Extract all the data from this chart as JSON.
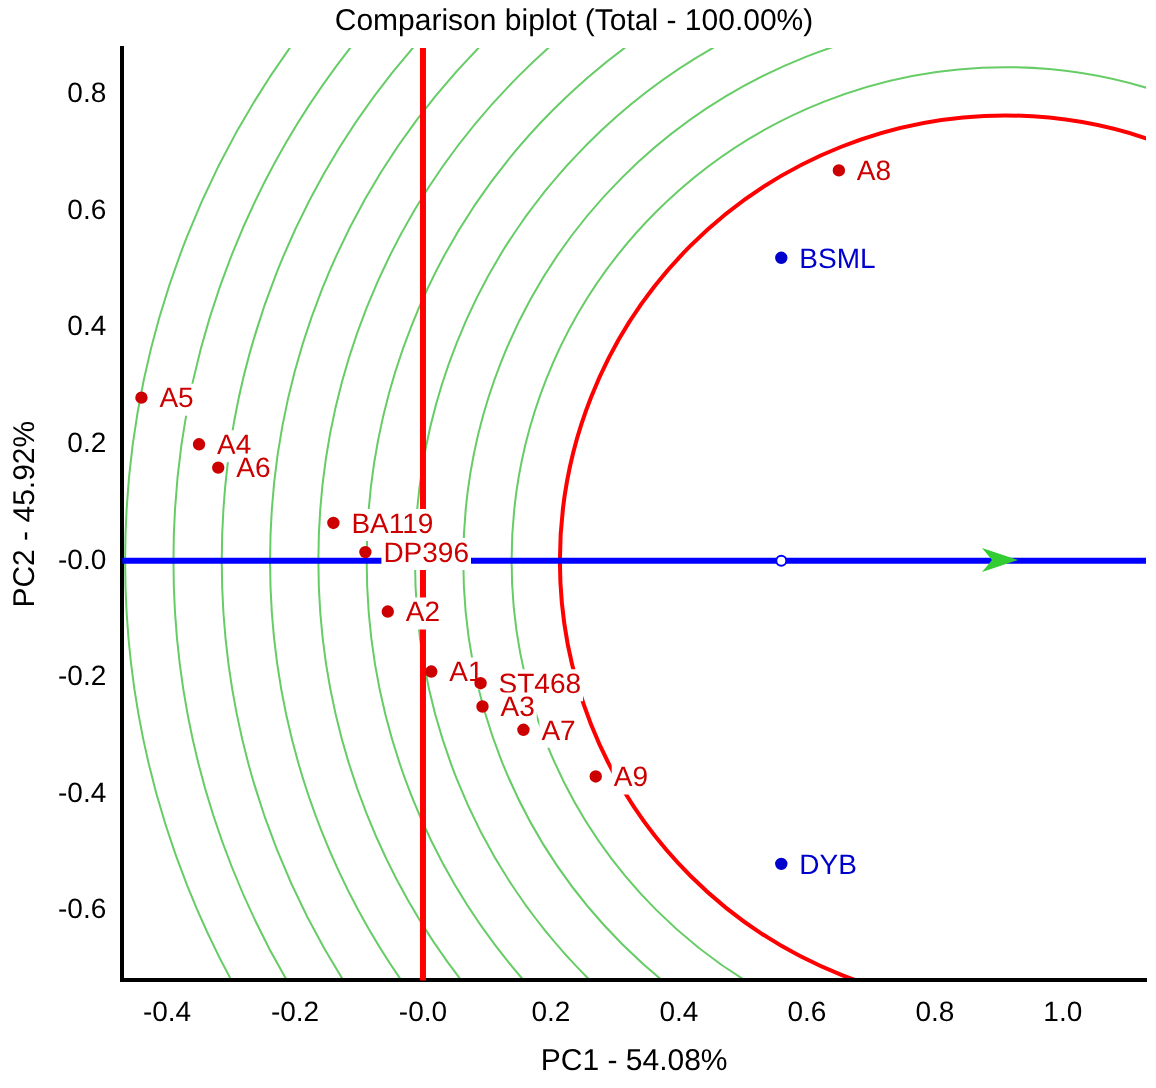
{
  "chart_data": {
    "type": "scatter",
    "title": "Comparison biplot (Total - 100.00%)",
    "xlabel": "PC1 - 54.08%",
    "ylabel": "PC2 - 45.92%",
    "series": [
      {
        "color": "#cc0000",
        "x": [
          0.65,
          -0.44,
          -0.35,
          -0.32,
          -0.14,
          -0.09,
          -0.055,
          0.013,
          0.09,
          0.093,
          0.157,
          0.27
        ],
        "values": [
          0.67,
          0.28,
          0.2,
          0.16,
          0.065,
          0.015,
          -0.087,
          -0.19,
          -0.21,
          -0.25,
          -0.29,
          -0.37
        ]
      },
      {
        "color": "#0000cc",
        "x": [
          0.56,
          0.56
        ],
        "values": [
          0.52,
          -0.52
        ]
      },
      {
        "color": "#0000ff",
        "x": [
          0.56
        ],
        "values": [
          0
        ]
      }
    ],
    "annotations": [
      {
        "text": "A8",
        "x": 0.65,
        "y": 0.67
      },
      {
        "text": "A5",
        "x": -0.44,
        "y": 0.28
      },
      {
        "text": "A4",
        "x": -0.35,
        "y": 0.2
      },
      {
        "text": "A6",
        "x": -0.32,
        "y": 0.16
      },
      {
        "text": "BA119",
        "x": -0.14,
        "y": 0.065
      },
      {
        "text": "DP396",
        "x": -0.09,
        "y": 0.015
      },
      {
        "text": "A2",
        "x": -0.055,
        "y": -0.087
      },
      {
        "text": "A1",
        "x": 0.013,
        "y": -0.19
      },
      {
        "text": "ST468",
        "x": 0.09,
        "y": -0.21
      },
      {
        "text": "A3",
        "x": 0.093,
        "y": -0.25
      },
      {
        "text": "A7",
        "x": 0.157,
        "y": -0.29
      },
      {
        "text": "A9",
        "x": 0.27,
        "y": -0.37
      },
      {
        "text": "BSML",
        "x": 0.56,
        "y": 0.52
      },
      {
        "text": "DYB",
        "x": 0.56,
        "y": -0.52
      }
    ],
    "ref_lines": [
      {
        "axis": "x",
        "value": 0,
        "color": "#ff0000"
      },
      {
        "axis": "y",
        "value": 0,
        "color": "#0000ff"
      }
    ],
    "xlim": [
      -0.47,
      1.13
    ],
    "ylim": [
      -0.72,
      0.88
    ],
    "xticks": [
      -0.4,
      -0.2,
      {
        "value": 0,
        "label": "-0.0"
      },
      0.2,
      0.4,
      0.6,
      0.8,
      {
        "value": 1,
        "label": "1.0"
      }
    ],
    "yticks": [
      -0.6,
      -0.4,
      -0.2,
      {
        "value": 0,
        "label": "-0.0"
      },
      0.2,
      0.4,
      0.6,
      0.8
    ],
    "marker": "circle",
    "grid": false,
    "legend": false
  }
}
